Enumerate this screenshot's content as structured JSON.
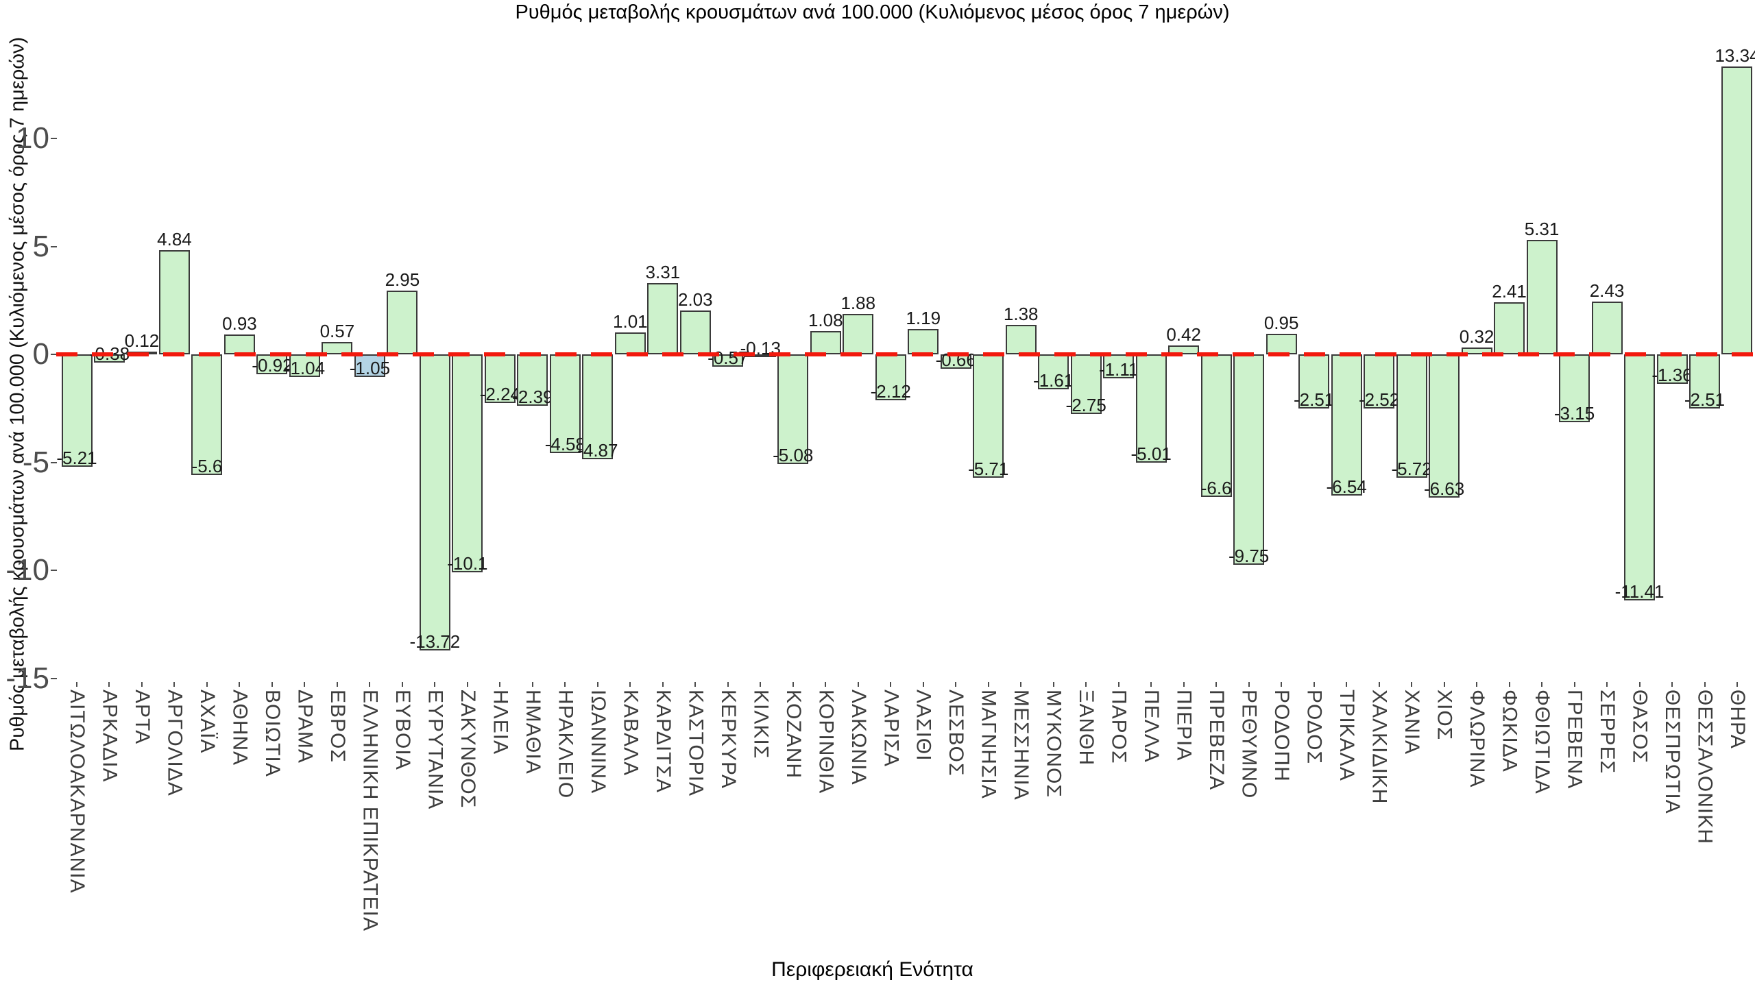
{
  "title": "Ρυθμός μεταβολής κρουσμάτων ανά 100.000 (Κυλιόμενος μέσος όρος 7 ημερών)",
  "x_axis_label": "Περιφερειακή Ενότητα",
  "y_axis_label": "Ρυθμός μεταβολής κρουσμάτων ανά 100.000 (Κυλιόμενος μέσος όρος 7 ημερών)",
  "colors": {
    "bar_fill": "#cdf2cc",
    "highlight_fill": "#b3d4e5",
    "bar_edge": "#3a3a3a",
    "zero_line": "#f2190d",
    "value_label": "#1a1a1a",
    "tick_label": "#4d4d4d",
    "category_label": "#3d3d3d",
    "background": "#ffffff"
  },
  "chart_data": {
    "type": "bar",
    "title": "Ρυθμός μεταβολής κρουσμάτων ανά 100.000 (Κυλιόμενος μέσος όρος 7 ημερών)",
    "xlabel": "Περιφερειακή Ενότητα",
    "ylabel": "Ρυθμός μεταβολής κρουσμάτων ανά 100.000 (Κυλιόμενος μέσος όρος 7 ημερών)",
    "grid": false,
    "legend": false,
    "ylim": [
      -15.6,
      14.6
    ],
    "yticks": [
      10,
      5,
      0,
      -5,
      -10,
      -15
    ],
    "zero_line_style": "dashed red",
    "highlight_category": "ΕΛΛΗΝΙΚΗ ΕΠΙΚΡΑΤΕΙΑ",
    "highlight_index": 9,
    "categories": [
      "ΑΙΤΩΛΟΑΚΑΡΝΑΝΙΑ",
      "ΑΡΚΑΔΙΑ",
      "ΑΡΤΑ",
      "ΑΡΓΟΛΙΔΑ",
      "ΑΧΑΪΑ",
      "ΑΘΗΝΑ",
      "ΒΟΙΩΤΙΑ",
      "ΔΡΑΜΑ",
      "ΕΒΡΟΣ",
      "ΕΛΛΗΝΙΚΗ ΕΠΙΚΡΑΤΕΙΑ",
      "ΕΥΒΟΙΑ",
      "ΕΥΡΥΤΑΝΙΑ",
      "ΖΑΚΥΝΘΟΣ",
      "ΗΛΕΙΑ",
      "ΗΜΑΘΙΑ",
      "ΗΡΑΚΛΕΙΟ",
      "ΙΩΑΝΝΙΝΑ",
      "ΚΑΒΑΛΑ",
      "ΚΑΡΔΙΤΣΑ",
      "ΚΑΣΤΟΡΙΑ",
      "ΚΕΡΚΥΡΑ",
      "ΚΙΛΚΙΣ",
      "ΚΟΖΑΝΗ",
      "ΚΟΡΙΝΘΙΑ",
      "ΛΑΚΩΝΙΑ",
      "ΛΑΡΙΣΑ",
      "ΛΑΣΙΘΙ",
      "ΛΕΣΒΟΣ",
      "ΜΑΓΝΗΣΙΑ",
      "ΜΕΣΣΗΝΙΑ",
      "ΜΥΚΟΝΟΣ",
      "ΞΑΝΘΗ",
      "ΠΑΡΟΣ",
      "ΠΕΛΛΑ",
      "ΠΙΕΡΙΑ",
      "ΠΡΕΒΕΖΑ",
      "ΡΕΘΥΜΝΟ",
      "ΡΟΔΟΠΗ",
      "ΡΟΔΟΣ",
      "ΤΡΙΚΑΛΑ",
      "ΧΑΛΚΙΔΙΚΗ",
      "ΧΑΝΙΑ",
      "ΧΙΟΣ",
      "ΦΛΩΡΙΝΑ",
      "ΦΩΚΙΔΑ",
      "ΦΘΙΩΤΙΔΑ",
      "ΓΡΕΒΕΝΑ",
      "ΣΕΡΡΕΣ",
      "ΘΑΣΟΣ",
      "ΘΕΣΠΡΩΤΙΑ",
      "ΘΕΣΣΑΛΟΝΙΚΗ",
      "ΘΗΡΑ"
    ],
    "values": [
      -5.21,
      -0.38,
      0.12,
      4.84,
      -5.6,
      0.93,
      -0.92,
      -1.04,
      0.57,
      -1.05,
      2.95,
      -13.72,
      -10.1,
      -2.24,
      -2.39,
      -4.58,
      -4.87,
      1.01,
      3.31,
      2.03,
      -0.57,
      -0.13,
      -5.08,
      1.08,
      1.88,
      -2.12,
      1.19,
      -0.66,
      -5.71,
      1.38,
      -1.61,
      -2.75,
      -1.11,
      -5.01,
      0.42,
      -6.6,
      -9.75,
      0.95,
      -2.51,
      -6.54,
      -2.52,
      -5.72,
      -6.63,
      0.32,
      2.41,
      5.31,
      -3.15,
      2.43,
      -11.41,
      -1.36,
      -2.51,
      13.34
    ]
  }
}
